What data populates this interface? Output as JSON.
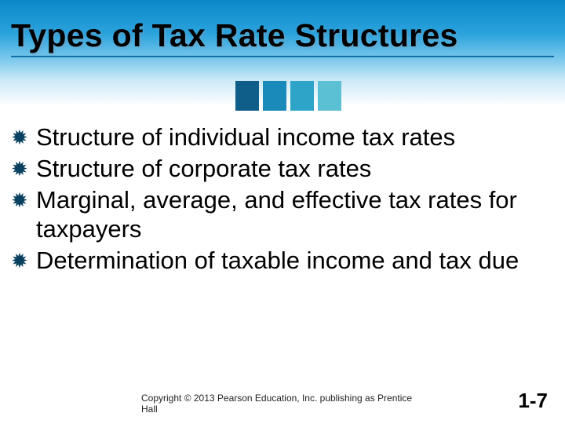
{
  "title": "Types of Tax Rate Structures",
  "accent_colors": [
    "#0e5e89",
    "#1a8abb",
    "#2ea4c9",
    "#5cc0d4"
  ],
  "bullets": [
    "Structure of individual income tax rates",
    "Structure of corporate tax rates",
    "Marginal, average, and effective tax rates for taxpayers",
    "Determination of taxable income and tax due"
  ],
  "footer": {
    "copyright": "Copyright © 2013 Pearson Education, Inc. publishing as Prentice Hall",
    "page": "1-7"
  }
}
